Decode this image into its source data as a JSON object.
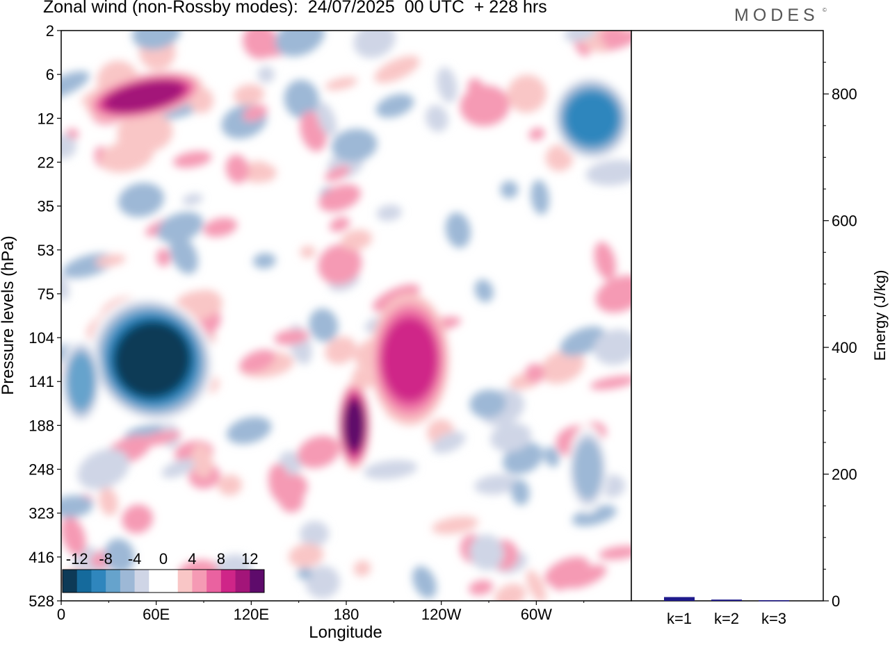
{
  "chart_data": [
    {
      "type": "heatmap",
      "title": "Zonal wind (non-Rossby modes):  24/07/2025  00 UTC  + 228 hrs",
      "xlabel": "Longitude",
      "ylabel": "Pressure levels (hPa)",
      "x_ticks": [
        "0",
        "60E",
        "120E",
        "180",
        "120W",
        "60W"
      ],
      "y_ticks": [
        "2",
        "6",
        "12",
        "22",
        "35",
        "53",
        "75",
        "104",
        "141",
        "188",
        "248",
        "323",
        "416",
        "528"
      ],
      "colorbar": {
        "tick_labels": [
          "-12",
          "-8",
          "-4",
          "0",
          "4",
          "8",
          "12"
        ],
        "colors": [
          "#0d3a57",
          "#156a9c",
          "#2f86bd",
          "#66a3cc",
          "#9db8d6",
          "#cfd5e6",
          "#ffffff",
          "#ffffff",
          "#f9c6c6",
          "#f59ab4",
          "#ea62a0",
          "#cf2588",
          "#a31579",
          "#5e0b6b"
        ]
      },
      "features": [
        {
          "name": "strong easterly core",
          "lon_range": [
            20,
            95
          ],
          "level_range": [
            75,
            188
          ],
          "value": -14
        },
        {
          "name": "easterly patch west",
          "lon_range": [
            0,
            25
          ],
          "level_range": [
            104,
            188
          ],
          "value": -8
        },
        {
          "name": "westerly maximum",
          "lon_range": [
            175,
            195
          ],
          "level_range": [
            141,
            248
          ],
          "value": 11
        },
        {
          "name": "westerly band",
          "lon_range": [
            195,
            245
          ],
          "level_range": [
            75,
            188
          ],
          "value": 7
        },
        {
          "name": "easterly patch east",
          "lon_range": [
            320,
            345
          ],
          "level_range": [
            188,
            323
          ],
          "value": -6
        },
        {
          "name": "upper easterly",
          "lon_range": [
            310,
            360
          ],
          "level_range": [
            6,
            22
          ],
          "value": -10
        },
        {
          "name": "upper westerly",
          "lon_range": [
            15,
            90
          ],
          "level_range": [
            6,
            12
          ],
          "value": 9
        }
      ]
    },
    {
      "type": "bar",
      "categories": [
        "k=1",
        "k=2",
        "k=3"
      ],
      "values": [
        6,
        2,
        1
      ],
      "ylabel": "Energy (J/kg)",
      "ylim": [
        0,
        900
      ],
      "y_ticks": [
        0,
        200,
        400,
        600,
        800
      ],
      "color": "#1f1a8c"
    }
  ],
  "header": {
    "title": "Zonal wind (non-Rossby modes):  24/07/2025  00 UTC  + 228 hrs",
    "brand": "MODES",
    "brand_mark": "©"
  }
}
